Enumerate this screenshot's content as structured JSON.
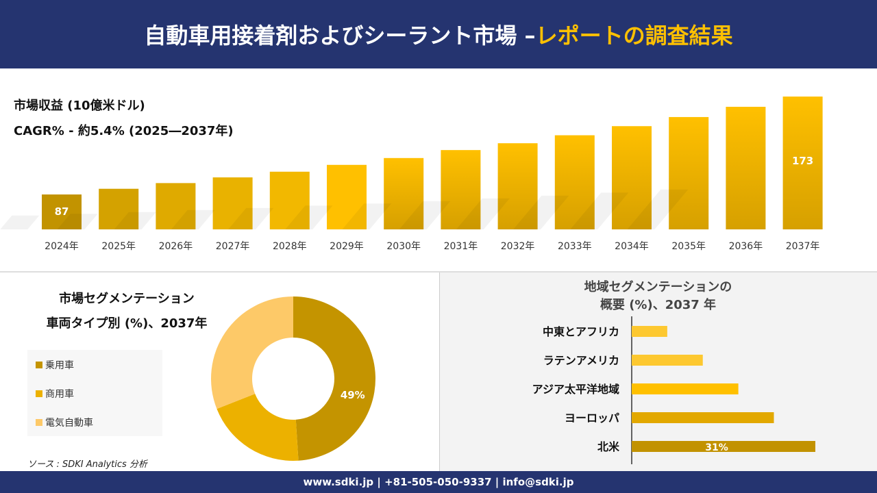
{
  "header": {
    "title_main": "自動車用接着剤およびシーラント市場 –",
    "title_accent": "レポートの調査結果"
  },
  "revenue": {
    "title": "市場収益 (10億米ドル)",
    "cagr": "CAGR% - 約5.4% (2025―2037年)"
  },
  "segment": {
    "title1": "市場セグメンテーション",
    "title2": "車両タイプ別 (%)、2037年"
  },
  "region": {
    "title1": "地域セグメンテーションの",
    "title2": "概要 (%)、2037 年"
  },
  "source": "ソース : SDKI Analytics 分析",
  "footer": "www.sdki.jp | +81-505-050-9337 | info@sdki.jp",
  "chart_data": [
    {
      "type": "bar",
      "title": "市場収益 (10億米ドル)",
      "categories": [
        "2024年",
        "2025年",
        "2026年",
        "2027年",
        "2028年",
        "2029年",
        "2030年",
        "2031年",
        "2032年",
        "2033年",
        "2034年",
        "2035年",
        "2036年",
        "2037年"
      ],
      "values": [
        87,
        92,
        97,
        102,
        107,
        113,
        119,
        126,
        132,
        139,
        147,
        155,
        164,
        173
      ],
      "data_labels": {
        "0": "87",
        "13": "173"
      }
    },
    {
      "type": "pie",
      "donut": true,
      "categories": [
        "乗用車",
        "商用車",
        "電気自動車"
      ],
      "values": [
        49,
        20,
        31
      ],
      "colors": [
        "#c49400",
        "#ecb100",
        "#fdc968"
      ],
      "data_labels": {
        "0": "49%"
      }
    },
    {
      "type": "bar",
      "orientation": "horizontal",
      "categories": [
        "中東とアフリカ",
        "ラテンアメリカ",
        "アジア太平洋地域",
        "ヨーロッパ",
        "北米"
      ],
      "values": [
        6,
        12,
        18,
        24,
        31
      ],
      "colors": [
        "#fdc830",
        "#fdc830",
        "#ffc000",
        "#e2a800",
        "#c29200"
      ],
      "data_labels": {
        "4": "31%"
      }
    }
  ]
}
